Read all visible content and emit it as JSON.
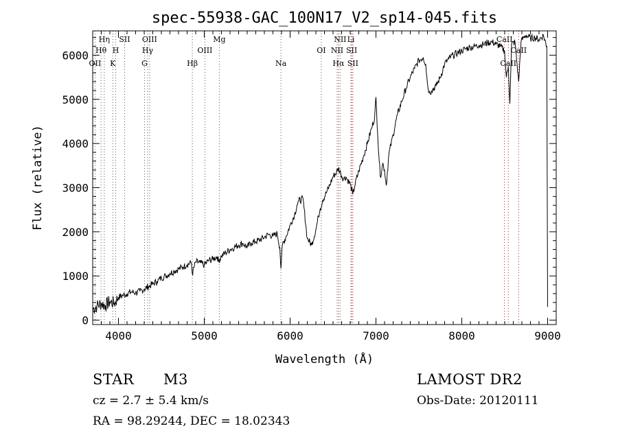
{
  "chart_data": {
    "type": "line",
    "title": "spec-55938-GAC_100N17_V2_sp14-045.fits",
    "xlabel": "Wavelength (Å)",
    "ylabel": "Flux (relative)",
    "xlim": [
      3700,
      9100
    ],
    "ylim": [
      -100,
      6550
    ],
    "xticks": [
      4000,
      5000,
      6000,
      7000,
      8000,
      9000
    ],
    "yticks": [
      0,
      1000,
      2000,
      3000,
      4000,
      5000,
      6000
    ],
    "series": [
      {
        "name": "flux",
        "x": [
          3700,
          3750,
          3800,
          3850,
          3900,
          3950,
          4000,
          4050,
          4100,
          4150,
          4200,
          4250,
          4300,
          4350,
          4400,
          4450,
          4500,
          4550,
          4600,
          4650,
          4700,
          4750,
          4800,
          4850,
          4860,
          4900,
          4950,
          5000,
          5050,
          5100,
          5150,
          5167,
          5200,
          5250,
          5300,
          5350,
          5400,
          5450,
          5500,
          5550,
          5600,
          5650,
          5700,
          5750,
          5800,
          5850,
          5880,
          5893,
          5910,
          5950,
          6000,
          6050,
          6080,
          6100,
          6150,
          6200,
          6250,
          6300,
          6330,
          6350,
          6380,
          6420,
          6460,
          6500,
          6540,
          6563,
          6590,
          6620,
          6650,
          6700,
          6730,
          6760,
          6800,
          6850,
          6900,
          6950,
          6985,
          7000,
          7020,
          7050,
          7080,
          7100,
          7120,
          7150,
          7200,
          7250,
          7300,
          7350,
          7400,
          7450,
          7500,
          7550,
          7580,
          7600,
          7620,
          7650,
          7700,
          7750,
          7800,
          7850,
          7900,
          7950,
          8000,
          8050,
          8100,
          8150,
          8200,
          8250,
          8300,
          8350,
          8400,
          8450,
          8498,
          8520,
          8542,
          8560,
          8580,
          8620,
          8662,
          8690,
          8720,
          8750,
          8800,
          8850,
          8900,
          8950,
          8990,
          9000
        ],
        "y": [
          250,
          320,
          380,
          330,
          420,
          380,
          520,
          560,
          600,
          640,
          620,
          650,
          700,
          760,
          820,
          880,
          960,
          1000,
          1060,
          1110,
          1160,
          1200,
          1260,
          1300,
          1050,
          1320,
          1300,
          1250,
          1350,
          1380,
          1440,
          1330,
          1450,
          1530,
          1600,
          1650,
          1700,
          1740,
          1650,
          1750,
          1780,
          1820,
          1880,
          1940,
          1900,
          1960,
          1640,
          1170,
          1700,
          1880,
          2150,
          2380,
          2600,
          2700,
          2750,
          1850,
          1700,
          2050,
          2350,
          2520,
          2720,
          2880,
          3050,
          3250,
          3350,
          3440,
          3320,
          3200,
          3240,
          3080,
          2850,
          3100,
          3380,
          3680,
          4000,
          4350,
          4600,
          5050,
          4200,
          3250,
          3550,
          3400,
          3050,
          3750,
          4200,
          4650,
          4950,
          5250,
          5500,
          5700,
          5880,
          5950,
          5800,
          5350,
          5150,
          5200,
          5300,
          5500,
          5800,
          5920,
          6000,
          6050,
          6100,
          6150,
          6180,
          6200,
          6230,
          6240,
          6280,
          6300,
          6250,
          6200,
          6100,
          5500,
          5750,
          4900,
          6250,
          6300,
          5400,
          6300,
          6400,
          6450,
          6380,
          6400,
          6350,
          6450,
          6200,
          300
        ]
      }
    ],
    "line_labels": [
      {
        "text": "Hη",
        "x": 3835,
        "row": 0
      },
      {
        "text": "Hθ",
        "x": 3797,
        "row": 1
      },
      {
        "text": "OII",
        "x": 3727,
        "row": 2
      },
      {
        "text": "SII",
        "x": 4072,
        "row": 0
      },
      {
        "text": "H",
        "x": 3968,
        "row": 1
      },
      {
        "text": "K",
        "x": 3934,
        "row": 2
      },
      {
        "text": "OIII",
        "x": 4363,
        "row": 0
      },
      {
        "text": "Hγ",
        "x": 4340,
        "row": 1
      },
      {
        "text": "G",
        "x": 4304,
        "row": 2
      },
      {
        "text": "Hβ",
        "x": 4861,
        "row": 2
      },
      {
        "text": "Mg",
        "x": 5175,
        "row": 0
      },
      {
        "text": "OIII",
        "x": 5007,
        "row": 1
      },
      {
        "text": "Na",
        "x": 5893,
        "row": 2
      },
      {
        "text": "NII",
        "x": 6583,
        "row": 0
      },
      {
        "text": "Li",
        "x": 6708,
        "row": 0
      },
      {
        "text": "OI",
        "x": 6363,
        "row": 1
      },
      {
        "text": "NII",
        "x": 6548,
        "row": 1
      },
      {
        "text": "SII",
        "x": 6717,
        "row": 1
      },
      {
        "text": "Hα",
        "x": 6563,
        "row": 2
      },
      {
        "text": "SII",
        "x": 6731,
        "row": 2
      },
      {
        "text": "CaII",
        "x": 8498,
        "row": 0
      },
      {
        "text": "CaII",
        "x": 8662,
        "row": 1
      },
      {
        "text": "CaII",
        "x": 8542,
        "row": 2
      }
    ],
    "line_markers": [
      {
        "x": 3727,
        "color": "#555555"
      },
      {
        "x": 3797,
        "color": "#555555"
      },
      {
        "x": 3835,
        "color": "#555555"
      },
      {
        "x": 3934,
        "color": "#555555"
      },
      {
        "x": 3968,
        "color": "#555555"
      },
      {
        "x": 4072,
        "color": "#555555"
      },
      {
        "x": 4304,
        "color": "#555555"
      },
      {
        "x": 4340,
        "color": "#555555"
      },
      {
        "x": 4363,
        "color": "#555555"
      },
      {
        "x": 4861,
        "color": "#555555"
      },
      {
        "x": 5007,
        "color": "#555555"
      },
      {
        "x": 5175,
        "color": "#555555"
      },
      {
        "x": 5893,
        "color": "#555555"
      },
      {
        "x": 6363,
        "color": "#555555"
      },
      {
        "x": 6548,
        "color": "#555555"
      },
      {
        "x": 6563,
        "color": "#c00000"
      },
      {
        "x": 6583,
        "color": "#555555"
      },
      {
        "x": 6708,
        "color": "#555555"
      },
      {
        "x": 6717,
        "color": "#c00000"
      },
      {
        "x": 6731,
        "color": "#c00000"
      },
      {
        "x": 8498,
        "color": "#c00000"
      },
      {
        "x": 8542,
        "color": "#c00000"
      },
      {
        "x": 8662,
        "color": "#c00000"
      }
    ],
    "grid": false
  },
  "info": {
    "class_label": "STAR",
    "subclass": "M3",
    "survey": "LAMOST DR2",
    "cz": "cz = 2.7 ± 5.4 km/s",
    "obs_date": "Obs-Date: 20120111",
    "coords": "RA =  98.29244, DEC =  18.02343"
  }
}
